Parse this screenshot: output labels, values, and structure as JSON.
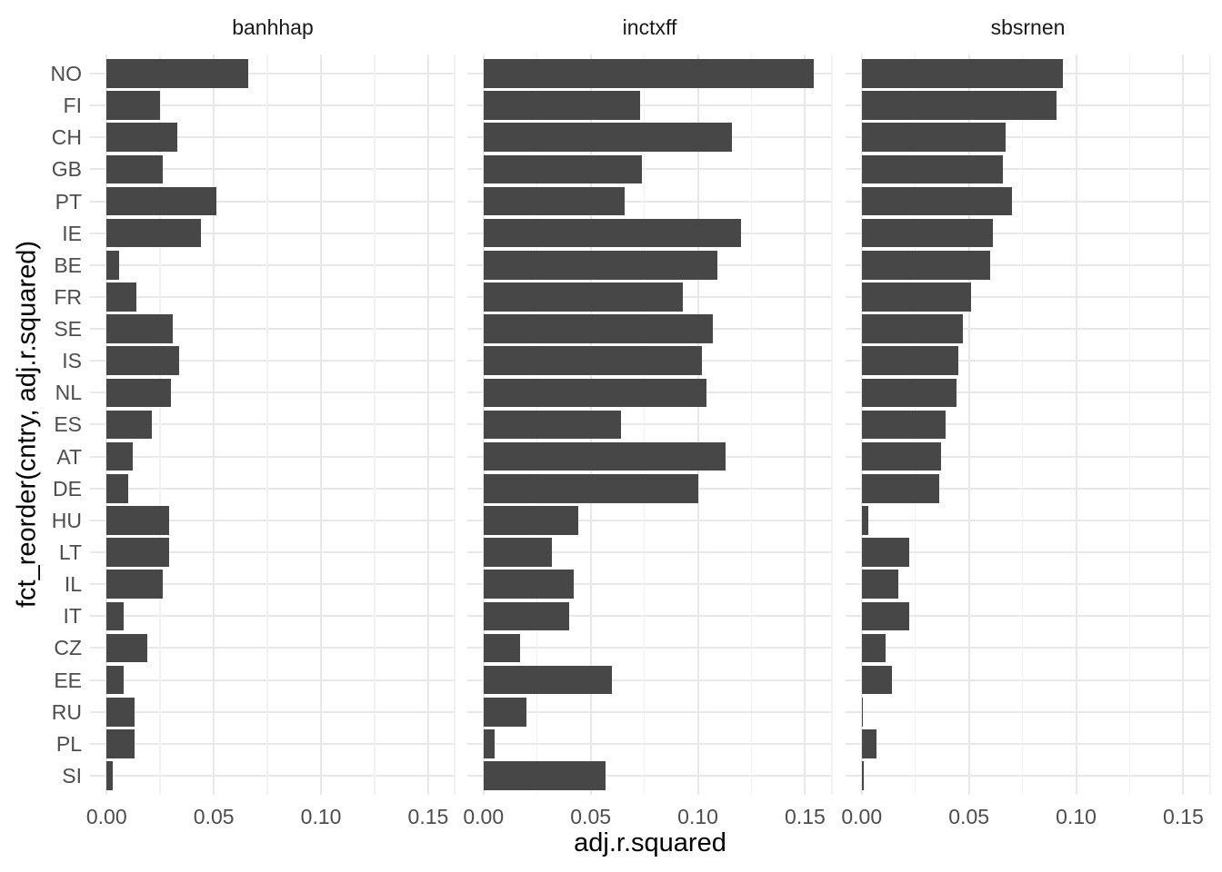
{
  "chart_data": {
    "type": "bar",
    "orientation": "horizontal",
    "title": "",
    "facets": [
      "banhhap",
      "inctxff",
      "sbsrnen"
    ],
    "categories": [
      "NO",
      "FI",
      "CH",
      "GB",
      "PT",
      "IE",
      "BE",
      "FR",
      "SE",
      "IS",
      "NL",
      "ES",
      "AT",
      "DE",
      "HU",
      "LT",
      "IL",
      "IT",
      "CZ",
      "EE",
      "RU",
      "PL",
      "SI"
    ],
    "series": [
      {
        "name": "banhhap",
        "values": [
          0.066,
          0.025,
          0.033,
          0.026,
          0.051,
          0.044,
          0.006,
          0.014,
          0.031,
          0.034,
          0.03,
          0.021,
          0.012,
          0.01,
          0.029,
          0.029,
          0.026,
          0.008,
          0.019,
          0.008,
          0.013,
          0.013,
          0.003
        ]
      },
      {
        "name": "inctxff",
        "values": [
          0.154,
          0.073,
          0.116,
          0.074,
          0.066,
          0.12,
          0.109,
          0.093,
          0.107,
          0.102,
          0.104,
          0.064,
          0.113,
          0.1,
          0.044,
          0.032,
          0.042,
          0.04,
          0.017,
          0.06,
          0.02,
          0.005,
          0.057
        ]
      },
      {
        "name": "sbsrnen",
        "values": [
          0.094,
          0.091,
          0.067,
          0.066,
          0.07,
          0.061,
          0.06,
          0.051,
          0.047,
          0.045,
          0.044,
          0.039,
          0.037,
          0.036,
          0.003,
          0.022,
          0.017,
          0.022,
          0.011,
          0.014,
          0.0005,
          0.007,
          0.001
        ]
      }
    ],
    "xlabel": "adj.r.squared",
    "ylabel": "fct_reorder(cntry, adj.r.squared)",
    "x_tick_values": [
      0,
      0.05,
      0.1,
      0.15
    ],
    "x_tick_labels": [
      "0.00",
      "0.05",
      "0.10",
      "0.15"
    ],
    "x_minor_tick_values": [
      0.025,
      0.075,
      0.125
    ],
    "xlim": [
      -0.00775,
      0.16275
    ],
    "grid": true,
    "legend": "none",
    "bar_color": "#474747",
    "grid_major_color": "#e8e8e8",
    "grid_minor_color": "#f2f2f2",
    "axis_text_color": "#4d4d4d",
    "strip_text_color": "#1a1a1a",
    "axis_title_color": "#000000"
  }
}
